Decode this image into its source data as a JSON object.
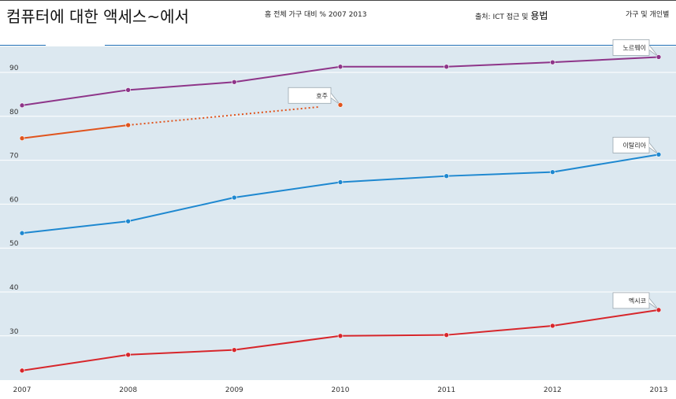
{
  "header": {
    "title": "컴퓨터에 대한 액세스~에서",
    "subtitle": "홈 전체 가구 대비 % 2007 2013",
    "source_prefix": "출처: ICT 접근 및 ",
    "source_usage": "용법",
    "nav_link": "가구 및 개인별"
  },
  "colors": {
    "plot_background": "#dce8f0",
    "grid": "#ffffff",
    "header_rule": "#1f6fb5",
    "노르웨이": "#8e3589",
    "호주": "#e0541d",
    "이탈리아": "#1e88d0",
    "멕시코": "#d7262b"
  },
  "chart_data": {
    "type": "line",
    "title": "컴퓨터에 대한 액세스~에서",
    "subtitle": "홈 전체 가구 대비 % 2007 2013",
    "x": [
      2007,
      2008,
      2009,
      2010,
      2011,
      2012,
      2013
    ],
    "xlim": [
      2007,
      2013
    ],
    "ylim": [
      21,
      100
    ],
    "y_ticks": [
      30,
      40,
      50,
      60,
      70,
      80,
      90
    ],
    "grid": true,
    "series": [
      {
        "name": "노르웨이",
        "color": "#8e3589",
        "values": [
          82.5,
          86,
          87.8,
          91.3,
          91.3,
          92.3,
          93.5
        ],
        "label_year": 2013
      },
      {
        "name": "호주",
        "color": "#e0541d",
        "values": [
          75,
          78,
          null,
          82.6,
          null,
          null,
          null
        ],
        "dotted_from": 2008,
        "label_year": 2010
      },
      {
        "name": "이탈리아",
        "color": "#1e88d0",
        "values": [
          53.4,
          56.1,
          61.5,
          65,
          66.4,
          67.3,
          71.3
        ],
        "label_year": 2013
      },
      {
        "name": "멕시코",
        "color": "#d7262b",
        "values": [
          22.1,
          25.7,
          26.8,
          30,
          30.2,
          32.3,
          35.9
        ],
        "label_year": 2013
      }
    ]
  }
}
